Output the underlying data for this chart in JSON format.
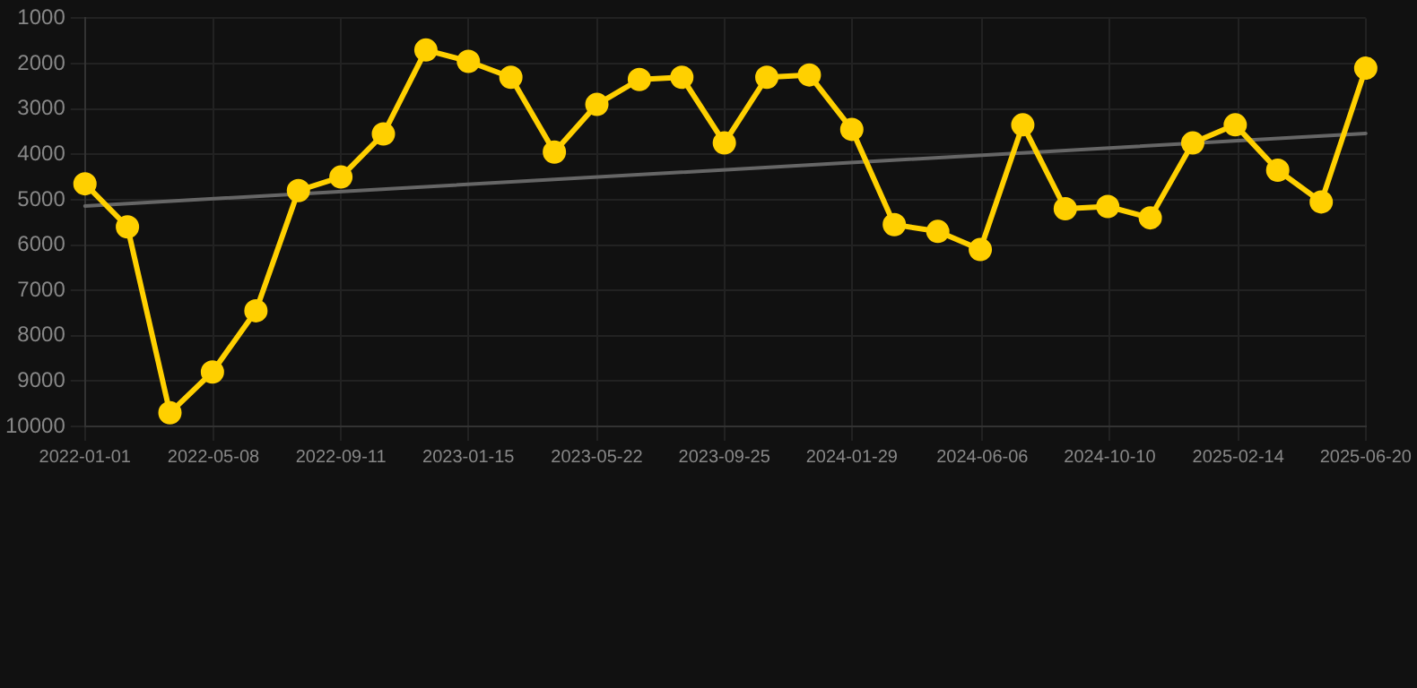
{
  "chart_data": {
    "type": "line",
    "x": [
      "2022-01-01",
      "2022-02-12",
      "2022-03-26",
      "2022-05-07",
      "2022-06-19",
      "2022-07-31",
      "2022-09-11",
      "2022-10-23",
      "2022-12-04",
      "2023-01-15",
      "2023-02-26",
      "2023-04-10",
      "2023-05-22",
      "2023-07-03",
      "2023-08-14",
      "2023-09-25",
      "2023-11-06",
      "2023-12-18",
      "2024-01-29",
      "2024-03-11",
      "2024-04-23",
      "2024-06-04",
      "2024-07-16",
      "2024-08-27",
      "2024-10-08",
      "2024-11-19",
      "2024-12-31",
      "2025-02-11",
      "2025-03-25",
      "2025-05-07",
      "2025-06-20"
    ],
    "series": [
      {
        "color": "#ffd000",
        "values": [
          4650,
          5600,
          9700,
          8800,
          7450,
          4800,
          4500,
          3550,
          1700,
          1950,
          2300,
          3950,
          2900,
          2350,
          2300,
          3750,
          2300,
          2250,
          3450,
          5550,
          5700,
          6100,
          3350,
          5200,
          5150,
          5400,
          3750,
          3350,
          4350,
          5050,
          2100
        ]
      },
      {
        "type": "line",
        "color": "#666666",
        "marker": "none",
        "x": [
          "2022-01-01",
          "2025-06-20"
        ],
        "values": [
          5140,
          3540
        ]
      }
    ],
    "xlim": [
      "2022-01-01",
      "2025-06-20"
    ],
    "xticks": [
      "2022-01-01",
      "2022-05-08",
      "2022-09-11",
      "2023-01-15",
      "2023-05-22",
      "2023-09-25",
      "2024-01-29",
      "2024-06-06",
      "2024-10-10",
      "2025-02-14",
      "2025-06-20"
    ],
    "ylim": [
      10000,
      1000
    ],
    "yticks": [
      1000,
      2000,
      3000,
      4000,
      5000,
      6000,
      7000,
      8000,
      9000,
      10000
    ],
    "grid": true,
    "legend": false,
    "marker": "circle",
    "line_style": "solid"
  }
}
